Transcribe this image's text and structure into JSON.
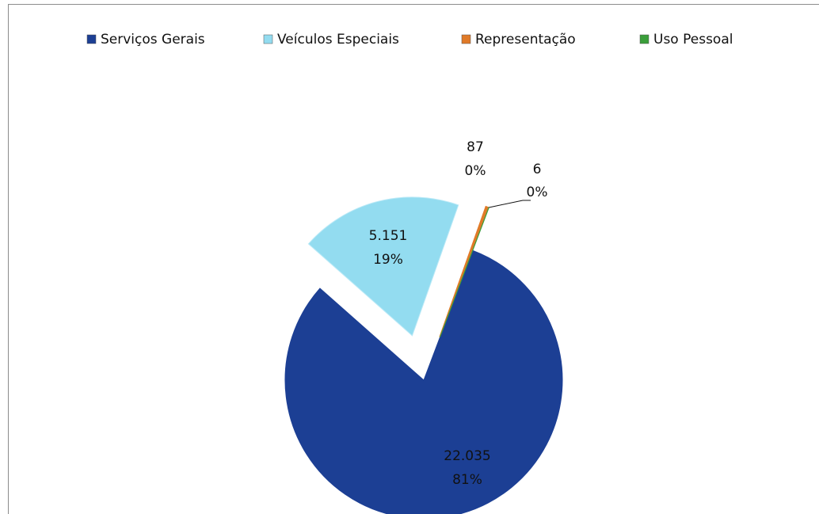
{
  "chart_data": {
    "type": "pie",
    "categories": [
      "Serviços Gerais",
      "Veículos Especiais",
      "Representação",
      "Uso Pessoal"
    ],
    "values": [
      22035,
      5151,
      87,
      6
    ],
    "value_labels": [
      "22.035",
      "5.151",
      "87",
      "6"
    ],
    "percents": [
      81,
      19,
      0,
      0
    ],
    "percent_labels": [
      "81%",
      "19%",
      "0%",
      "0%"
    ],
    "colors": [
      "#1c3f94",
      "#93dcf0",
      "#e07a28",
      "#3a9e3a"
    ],
    "exploded": [
      false,
      true,
      true,
      true
    ]
  }
}
